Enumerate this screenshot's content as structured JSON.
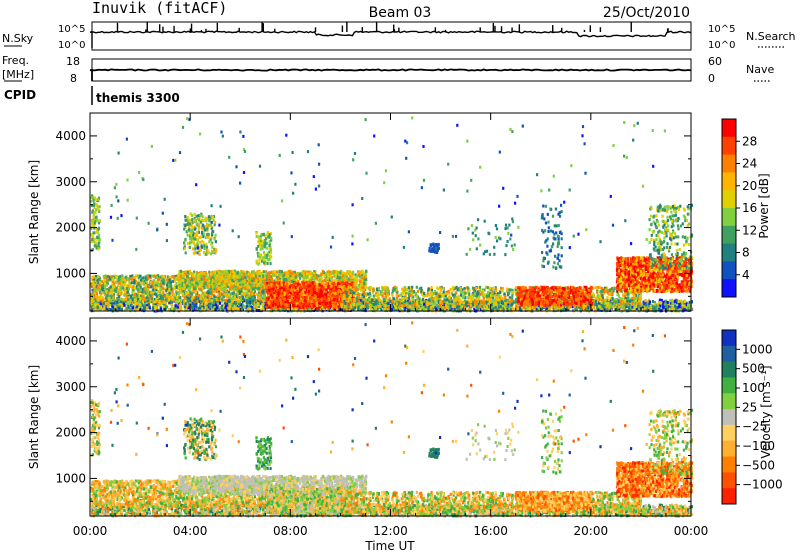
{
  "header": {
    "station": "Inuvik (fitACF)",
    "beam": "Beam 03",
    "date": "25/Oct/2010"
  },
  "top_panels": {
    "nsky_label": "N.Sky",
    "nsky_ticks": [
      "10^5",
      "10^0"
    ],
    "nsearch_label": "N.Search",
    "nsearch_ticks": [
      "10^5",
      "10^0"
    ],
    "freq_label": "Freq.",
    "freq_unit": "[MHz]",
    "freq_ticks": [
      "18",
      "8"
    ],
    "nave_label": "Nave",
    "nave_ticks": [
      "60",
      "0"
    ],
    "cpid_label": "CPID",
    "cpid_value": "themis 3300"
  },
  "chart_data": [
    {
      "type": "heatmap",
      "name": "power",
      "ylabel": "Slant Range [km]",
      "yticks": [
        1000,
        2000,
        3000,
        4000
      ],
      "ylim": [
        180,
        4500
      ],
      "xlim": [
        0,
        24
      ],
      "colorbar": {
        "label": "Power [dB]",
        "ticks": [
          "28",
          "24",
          "20",
          "16",
          "12",
          "8",
          "4"
        ],
        "colors": [
          "#ff0000",
          "#ff4000",
          "#ff8000",
          "#ffb400",
          "#e0d000",
          "#80d040",
          "#40a060",
          "#208080",
          "#1050c0",
          "#1010ff"
        ]
      }
    },
    {
      "type": "heatmap",
      "name": "velocity",
      "ylabel": "Slant Range [km]",
      "yticks": [
        1000,
        2000,
        3000,
        4000
      ],
      "ylim": [
        180,
        4500
      ],
      "xlim": [
        0,
        24
      ],
      "xlabel": "Time UT",
      "xticks": [
        "00:00",
        "04:00",
        "08:00",
        "12:00",
        "16:00",
        "20:00",
        "00:00"
      ],
      "colorbar": {
        "label": "Velocity [m s⁻¹]",
        "ticks": [
          "1000",
          "500",
          "100",
          "25",
          "−25",
          "−100",
          "−500",
          "−1000"
        ],
        "colors": [
          "#1030c0",
          "#2060a0",
          "#208060",
          "#40b040",
          "#80d040",
          "#c0c0b8",
          "#ffd060",
          "#ffb030",
          "#ff8000",
          "#ff5000",
          "#ff2000"
        ]
      }
    }
  ]
}
